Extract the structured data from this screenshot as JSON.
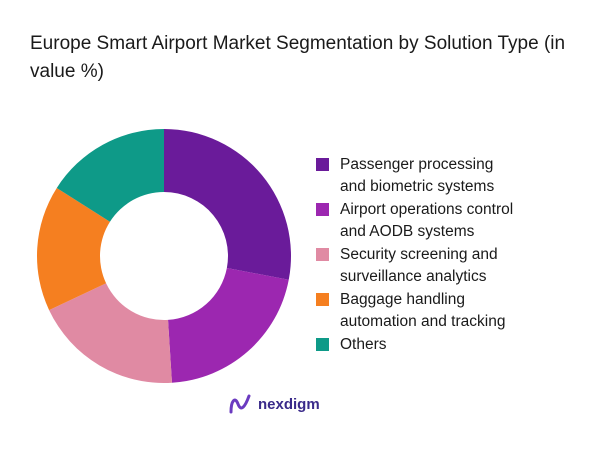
{
  "chart_data": {
    "type": "pie",
    "donut": true,
    "title": "Europe Smart Airport Market Segmentation by Solution Type (in value %)",
    "unit": "%",
    "series": [
      {
        "name": "Passenger processing and biometric systems",
        "label_lines": [
          "Passenger processing",
          "and biometric systems"
        ],
        "value": 28,
        "color": "#6a1b9a"
      },
      {
        "name": "Airport operations control and AODB systems",
        "label_lines": [
          "Airport operations control",
          "and AODB systems"
        ],
        "value": 21,
        "color": "#9c27b0"
      },
      {
        "name": "Security screening and surveillance analytics",
        "label_lines": [
          "Security screening and",
          "surveillance analytics"
        ],
        "value": 19,
        "color": "#e08aa3"
      },
      {
        "name": "Baggage handling automation and tracking",
        "label_lines": [
          "Baggage handling",
          "automation and tracking"
        ],
        "value": 16,
        "color": "#f57f20"
      },
      {
        "name": "Others",
        "label_lines": [
          "Others"
        ],
        "value": 16,
        "color": "#0e9a88"
      }
    ],
    "legend": "right"
  },
  "brand": {
    "name": "nexdigm",
    "color": "#3a2a8a",
    "icon": "nexdigm-logo-icon"
  }
}
